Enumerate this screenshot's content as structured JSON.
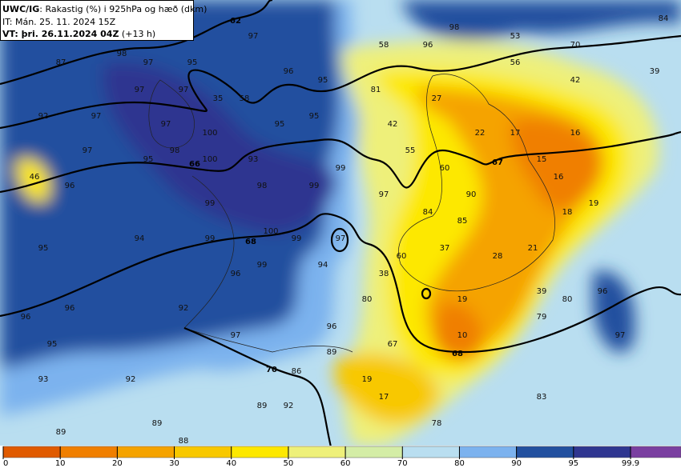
{
  "header": {
    "product": "UWC/IG",
    "description": ": Rakastig (%) i 925hPa og hæð (dkm)",
    "init_time": "IT: Mán. 25. 11. 2024 15Z",
    "valid_time": "VT: þri. 26.11.2024 04Z",
    "lead": " (+13 h)"
  },
  "humidity_labels": [
    97,
    98,
    53,
    70,
    84,
    87,
    98,
    97,
    95,
    58,
    96,
    56,
    42,
    39,
    96,
    95,
    97,
    97,
    35,
    58,
    81,
    27,
    92,
    97,
    95,
    95,
    42,
    22,
    17,
    16,
    100,
    97,
    98,
    97,
    55,
    95,
    100,
    93,
    99,
    60,
    15,
    16,
    46,
    96,
    98,
    99,
    97,
    90,
    19,
    99,
    84,
    85,
    18,
    100,
    99,
    97,
    94,
    99,
    95,
    37,
    28,
    21,
    60,
    94,
    99,
    96,
    38,
    92,
    96,
    80,
    19,
    39,
    80,
    96,
    96,
    79,
    96,
    97,
    10,
    97,
    95,
    89,
    67,
    86,
    92,
    19,
    17,
    83,
    93,
    89,
    92,
    89,
    78,
    89,
    88
  ],
  "height_labels": [
    62,
    66,
    67,
    68,
    68,
    70
  ],
  "colorbar": {
    "ticks": [
      0,
      10,
      20,
      30,
      40,
      50,
      60,
      70,
      80,
      90,
      95,
      99.9
    ],
    "colors": [
      "#e05a00",
      "#f07f00",
      "#f5a300",
      "#f8c800",
      "#fde800",
      "#eef07a",
      "#d4eda6",
      "#b9def0",
      "#7cb2ee",
      "#22509f",
      "#2f3690",
      "#7a3fa0"
    ]
  }
}
